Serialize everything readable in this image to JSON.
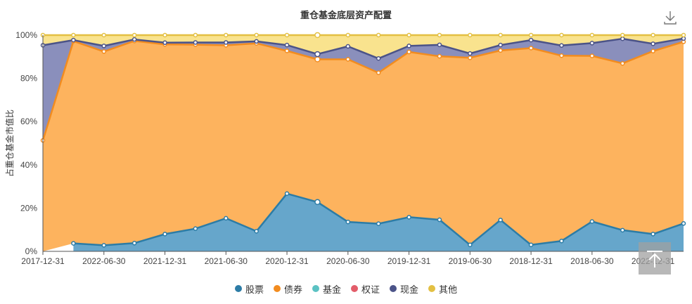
{
  "chart_data": {
    "type": "area",
    "title": "重仓基金底层资产配置",
    "ylabel": "占重仓基金市值比",
    "xlabel": "",
    "ylim": [
      0,
      100
    ],
    "yticks": [
      "0%",
      "20%",
      "40%",
      "60%",
      "80%",
      "100%"
    ],
    "stacked": true,
    "x_ticks": [
      {
        "index": 0,
        "label": "2017-12-31"
      },
      {
        "index": 2,
        "label": "2022-06-30"
      },
      {
        "index": 4,
        "label": "2021-12-31"
      },
      {
        "index": 6,
        "label": "2021-06-30"
      },
      {
        "index": 8,
        "label": "2020-12-31"
      },
      {
        "index": 10,
        "label": "2020-06-30"
      },
      {
        "index": 12,
        "label": "2019-12-31"
      },
      {
        "index": 14,
        "label": "2019-06-30"
      },
      {
        "index": 16,
        "label": "2018-12-31"
      },
      {
        "index": 18,
        "label": "2018-06-30"
      },
      {
        "index": 20,
        "label": "2022-12-31"
      }
    ],
    "highlight_index": 11,
    "legend_position": "bottom",
    "series": [
      {
        "name": "股票",
        "color": "#2c7ca6",
        "fill": "#66a6cb",
        "values": [
          null,
          3.7,
          2.8,
          3.8,
          8.0,
          10.5,
          15.3,
          9.3,
          26.7,
          22.8,
          13.6,
          12.8,
          15.8,
          14.6,
          3.0,
          14.5,
          3.0,
          4.8,
          13.8,
          9.8,
          8.0,
          12.9
        ]
      },
      {
        "name": "债券",
        "color": "#f28c1f",
        "fill": "#fdb35e",
        "values": [
          51.3,
          93.5,
          89.6,
          93.5,
          87.7,
          85.1,
          80.0,
          86.9,
          66.0,
          66.0,
          75.2,
          69.8,
          76.4,
          75.6,
          86.5,
          78.4,
          91.0,
          85.7,
          76.6,
          77.1,
          84.6,
          84.0
        ]
      },
      {
        "name": "基金",
        "color": "#5bc2c3",
        "fill": "#8fd6d7",
        "values": [
          0,
          0,
          0,
          0,
          0,
          0,
          0,
          0,
          0,
          0,
          0,
          0,
          0,
          0,
          0,
          0,
          0,
          0,
          0,
          0,
          0,
          0
        ]
      },
      {
        "name": "权证",
        "color": "#e35d6a",
        "fill": "#ef8d96",
        "values": [
          0,
          0,
          0,
          0,
          0,
          0,
          0,
          0,
          0,
          0,
          0,
          0,
          0,
          0,
          0,
          0,
          0,
          0,
          0,
          0,
          0,
          0
        ]
      },
      {
        "name": "现金",
        "color": "#4b5388",
        "fill": "#8a8fbc",
        "values": [
          44.0,
          0.5,
          2.6,
          0.7,
          0.8,
          1.0,
          1.3,
          0.9,
          2.7,
          2.4,
          6.0,
          6.6,
          2.8,
          5.3,
          2.0,
          2.5,
          3.7,
          4.7,
          5.9,
          11.4,
          3.4,
          1.5
        ]
      },
      {
        "name": "其他",
        "color": "#e3c043",
        "fill": "#f9e38e",
        "values": [
          4.7,
          2.3,
          5.0,
          2.0,
          3.5,
          3.4,
          3.4,
          2.9,
          4.6,
          8.8,
          5.2,
          10.8,
          5.0,
          4.5,
          8.5,
          4.6,
          2.3,
          4.8,
          3.7,
          1.7,
          4.0,
          1.6
        ]
      }
    ]
  },
  "toolbar": {
    "download_icon": "download-icon",
    "to_top_icon": "back-to-top-icon"
  }
}
